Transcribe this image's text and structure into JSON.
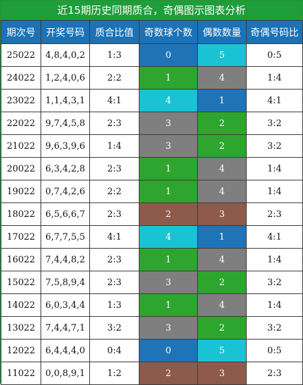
{
  "title": "近15期历史同期质合，奇偶图示图表分析",
  "headers": [
    "期次号",
    "开奖号码",
    "质合比值",
    "奇数球个数",
    "偶数数量",
    "奇偶号码比"
  ],
  "rows": [
    {
      "period": "25022",
      "numbers": "4,8,4,0,2",
      "prime_ratio": "1:3",
      "odd_count": "0",
      "even_count": "5",
      "odd_even_ratio": "0:5"
    },
    {
      "period": "24022",
      "numbers": "1,2,4,0,6",
      "prime_ratio": "2:2",
      "odd_count": "1",
      "even_count": "4",
      "odd_even_ratio": "1:4"
    },
    {
      "period": "23022",
      "numbers": "1,1,4,3,1",
      "prime_ratio": "4:1",
      "odd_count": "4",
      "even_count": "1",
      "odd_even_ratio": "4:1"
    },
    {
      "period": "22022",
      "numbers": "9,7,4,5,8",
      "prime_ratio": "2:3",
      "odd_count": "3",
      "even_count": "2",
      "odd_even_ratio": "3:2"
    },
    {
      "period": "21022",
      "numbers": "9,6,3,9,6",
      "prime_ratio": "1:4",
      "odd_count": "3",
      "even_count": "2",
      "odd_even_ratio": "3:2"
    },
    {
      "period": "20022",
      "numbers": "6,3,4,2,8",
      "prime_ratio": "2:3",
      "odd_count": "1",
      "even_count": "4",
      "odd_even_ratio": "1:4"
    },
    {
      "period": "19022",
      "numbers": "0,7,4,2,6",
      "prime_ratio": "2:2",
      "odd_count": "1",
      "even_count": "4",
      "odd_even_ratio": "1:4"
    },
    {
      "period": "18022",
      "numbers": "6,5,6,6,7",
      "prime_ratio": "2:3",
      "odd_count": "2",
      "even_count": "3",
      "odd_even_ratio": "2:3"
    },
    {
      "period": "17022",
      "numbers": "6,7,7,5,5",
      "prime_ratio": "4:1",
      "odd_count": "4",
      "even_count": "1",
      "odd_even_ratio": "4:1"
    },
    {
      "period": "16022",
      "numbers": "7,4,4,8,2",
      "prime_ratio": "2:3",
      "odd_count": "1",
      "even_count": "4",
      "odd_even_ratio": "1:4"
    },
    {
      "period": "15022",
      "numbers": "7,5,8,9,4",
      "prime_ratio": "2:3",
      "odd_count": "3",
      "even_count": "2",
      "odd_even_ratio": "3:2"
    },
    {
      "period": "14022",
      "numbers": "6,0,3,4,4",
      "prime_ratio": "1:3",
      "odd_count": "1",
      "even_count": "4",
      "odd_even_ratio": "1:4"
    },
    {
      "period": "13022",
      "numbers": "7,4,4,7,1",
      "prime_ratio": "3:2",
      "odd_count": "3",
      "even_count": "2",
      "odd_even_ratio": "3:2"
    },
    {
      "period": "12022",
      "numbers": "6,4,4,4,0",
      "prime_ratio": "0:4",
      "odd_count": "0",
      "even_count": "5",
      "odd_even_ratio": "0:5"
    },
    {
      "period": "11022",
      "numbers": "0,0,8,9,1",
      "prime_ratio": "1:2",
      "odd_count": "2",
      "even_count": "3",
      "odd_even_ratio": "2:3"
    }
  ],
  "count_colors": {
    "0": "#1f74b8",
    "1": "#2ea52e",
    "2": "#8d5a4c",
    "3": "#7f7f7f",
    "4": "#19c3d3",
    "5": "#19c3d3"
  },
  "even_count_colors": {
    "1": "#1f74b8",
    "2": "#2ea52e",
    "3": "#8d5a4c",
    "4": "#7f7f7f",
    "5": "#19c3d3"
  },
  "theme": {
    "title_bg": "#1d9e3a",
    "header_bg": "#1c72b6"
  }
}
